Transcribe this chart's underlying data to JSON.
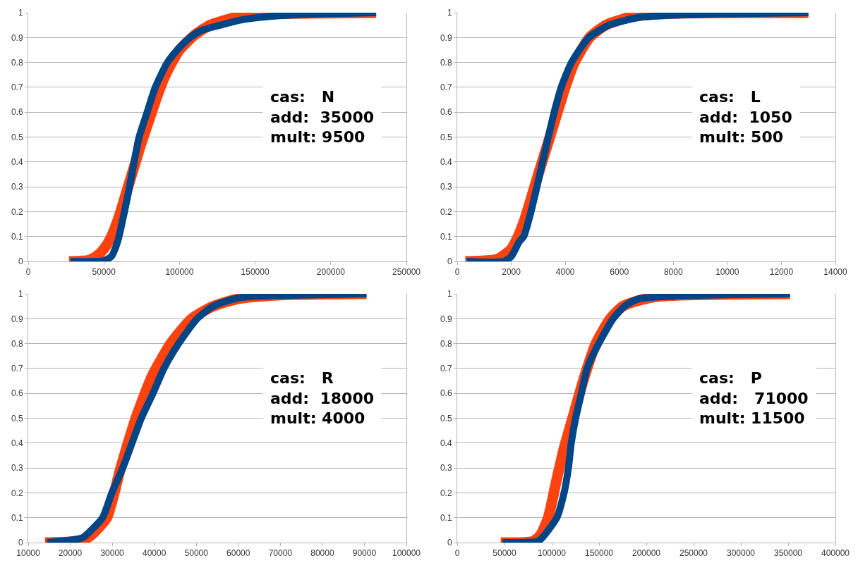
{
  "chart_data": [
    {
      "type": "line",
      "xlim": [
        0,
        250000
      ],
      "xticks": [
        0,
        50000,
        100000,
        150000,
        200000,
        250000
      ],
      "ylim": [
        0,
        1
      ],
      "yticks": [
        0,
        0.1,
        0.2,
        0.3,
        0.4,
        0.5,
        0.6,
        0.7,
        0.8,
        0.9,
        1
      ],
      "grid": "y",
      "annotations": [
        "cas:   N",
        "add:  35000",
        "mult: 9500"
      ],
      "series": [
        {
          "color": "#ff420e",
          "x": [
            27000,
            40000,
            45000,
            50000,
            55000,
            60000,
            65000,
            70000,
            75000,
            80000,
            85000,
            90000,
            95000,
            100000,
            110000,
            120000,
            130000,
            140000,
            160000,
            230000
          ],
          "values": [
            0,
            0.005,
            0.02,
            0.05,
            0.1,
            0.18,
            0.28,
            0.38,
            0.48,
            0.57,
            0.66,
            0.74,
            0.8,
            0.85,
            0.91,
            0.95,
            0.97,
            0.985,
            0.995,
            1
          ]
        },
        {
          "color": "#004586",
          "x": [
            28000,
            45000,
            50000,
            55000,
            58000,
            60000,
            63600,
            67000,
            70000,
            73300,
            78600,
            84000,
            92000,
            100000,
            107000,
            115000,
            127000,
            140000,
            160000,
            190000,
            230000
          ],
          "values": [
            0,
            0,
            0.003,
            0.02,
            0.06,
            0.1,
            0.2,
            0.3,
            0.4,
            0.5,
            0.6,
            0.7,
            0.8,
            0.86,
            0.9,
            0.93,
            0.95,
            0.97,
            0.985,
            0.995,
            1
          ]
        }
      ]
    },
    {
      "type": "line",
      "xlim": [
        0,
        14000
      ],
      "xticks": [
        0,
        2000,
        4000,
        6000,
        8000,
        10000,
        12000,
        14000
      ],
      "ylim": [
        0,
        1
      ],
      "yticks": [
        0,
        0.1,
        0.2,
        0.3,
        0.4,
        0.5,
        0.6,
        0.7,
        0.8,
        0.9,
        1
      ],
      "grid": "y",
      "annotations": [
        "cas:   L",
        "add:  1050",
        "mult: 500"
      ],
      "series": [
        {
          "color": "#ff420e",
          "x": [
            300,
            1500,
            2000,
            2250,
            2500,
            3000,
            3430,
            4000,
            4340,
            4900,
            5500,
            6500,
            8000,
            13000
          ],
          "values": [
            0,
            0.01,
            0.05,
            0.1,
            0.17,
            0.35,
            0.5,
            0.7,
            0.8,
            0.9,
            0.95,
            0.985,
            0.997,
            1
          ]
        },
        {
          "color": "#004586",
          "x": [
            350,
            1700,
            2000,
            2300,
            2460,
            2730,
            2950,
            3160,
            3370,
            3590,
            3850,
            4230,
            4870,
            5620,
            6690,
            8000,
            13000
          ],
          "values": [
            0,
            0,
            0.02,
            0.08,
            0.1,
            0.2,
            0.3,
            0.4,
            0.5,
            0.6,
            0.7,
            0.8,
            0.9,
            0.95,
            0.98,
            0.99,
            1
          ]
        }
      ]
    },
    {
      "type": "line",
      "xlim": [
        10000,
        100000
      ],
      "xticks": [
        10000,
        20000,
        30000,
        40000,
        50000,
        60000,
        70000,
        80000,
        90000,
        100000
      ],
      "ylim": [
        0,
        1
      ],
      "yticks": [
        0,
        0.1,
        0.2,
        0.3,
        0.4,
        0.5,
        0.6,
        0.7,
        0.8,
        0.9,
        1
      ],
      "grid": "y",
      "annotations": [
        "cas:   R",
        "add:  18000",
        "mult: 4000"
      ],
      "series": [
        {
          "color": "#ff420e",
          "x": [
            14000,
            20000,
            23000,
            25000,
            28700,
            32000,
            35600,
            39500,
            43900,
            48900,
            54000,
            60000,
            70000,
            90500
          ],
          "values": [
            0,
            0.003,
            0.01,
            0.03,
            0.1,
            0.3,
            0.5,
            0.67,
            0.8,
            0.9,
            0.95,
            0.98,
            0.995,
            1
          ]
        },
        {
          "color": "#004586",
          "x": [
            14500,
            20000,
            23000,
            25000,
            27700,
            29900,
            32500,
            34700,
            36900,
            39700,
            42300,
            45800,
            50200,
            54000,
            59000,
            64000,
            90500
          ],
          "values": [
            0,
            0.01,
            0.02,
            0.05,
            0.1,
            0.2,
            0.3,
            0.4,
            0.5,
            0.6,
            0.7,
            0.8,
            0.9,
            0.95,
            0.98,
            0.99,
            1
          ]
        }
      ]
    },
    {
      "type": "line",
      "xlim": [
        0,
        400000
      ],
      "xticks": [
        0,
        50000,
        100000,
        150000,
        200000,
        250000,
        300000,
        350000,
        400000
      ],
      "ylim": [
        0,
        1
      ],
      "yticks": [
        0,
        0.1,
        0.2,
        0.3,
        0.4,
        0.5,
        0.6,
        0.7,
        0.8,
        0.9,
        1
      ],
      "grid": "y",
      "annotations": [
        "cas:   P",
        "add:   71000",
        "mult: 11500"
      ],
      "series": [
        {
          "color": "#ff420e",
          "x": [
            46000,
            80000,
            88000,
            96200,
            105000,
            113000,
            122000,
            134000,
            146600,
            161800,
            175000,
            189000,
            214000,
            352000
          ],
          "values": [
            0,
            0.005,
            0.03,
            0.1,
            0.25,
            0.38,
            0.5,
            0.66,
            0.8,
            0.9,
            0.95,
            0.97,
            0.99,
            1
          ]
        },
        {
          "color": "#004586",
          "x": [
            48000,
            85000,
            90000,
            105300,
            113000,
            117600,
            120600,
            125200,
            131300,
            137400,
            149600,
            164900,
            177000,
            192000,
            352000
          ],
          "values": [
            0,
            0.005,
            0.02,
            0.1,
            0.2,
            0.3,
            0.4,
            0.5,
            0.6,
            0.7,
            0.8,
            0.9,
            0.95,
            0.98,
            1
          ]
        }
      ]
    }
  ]
}
